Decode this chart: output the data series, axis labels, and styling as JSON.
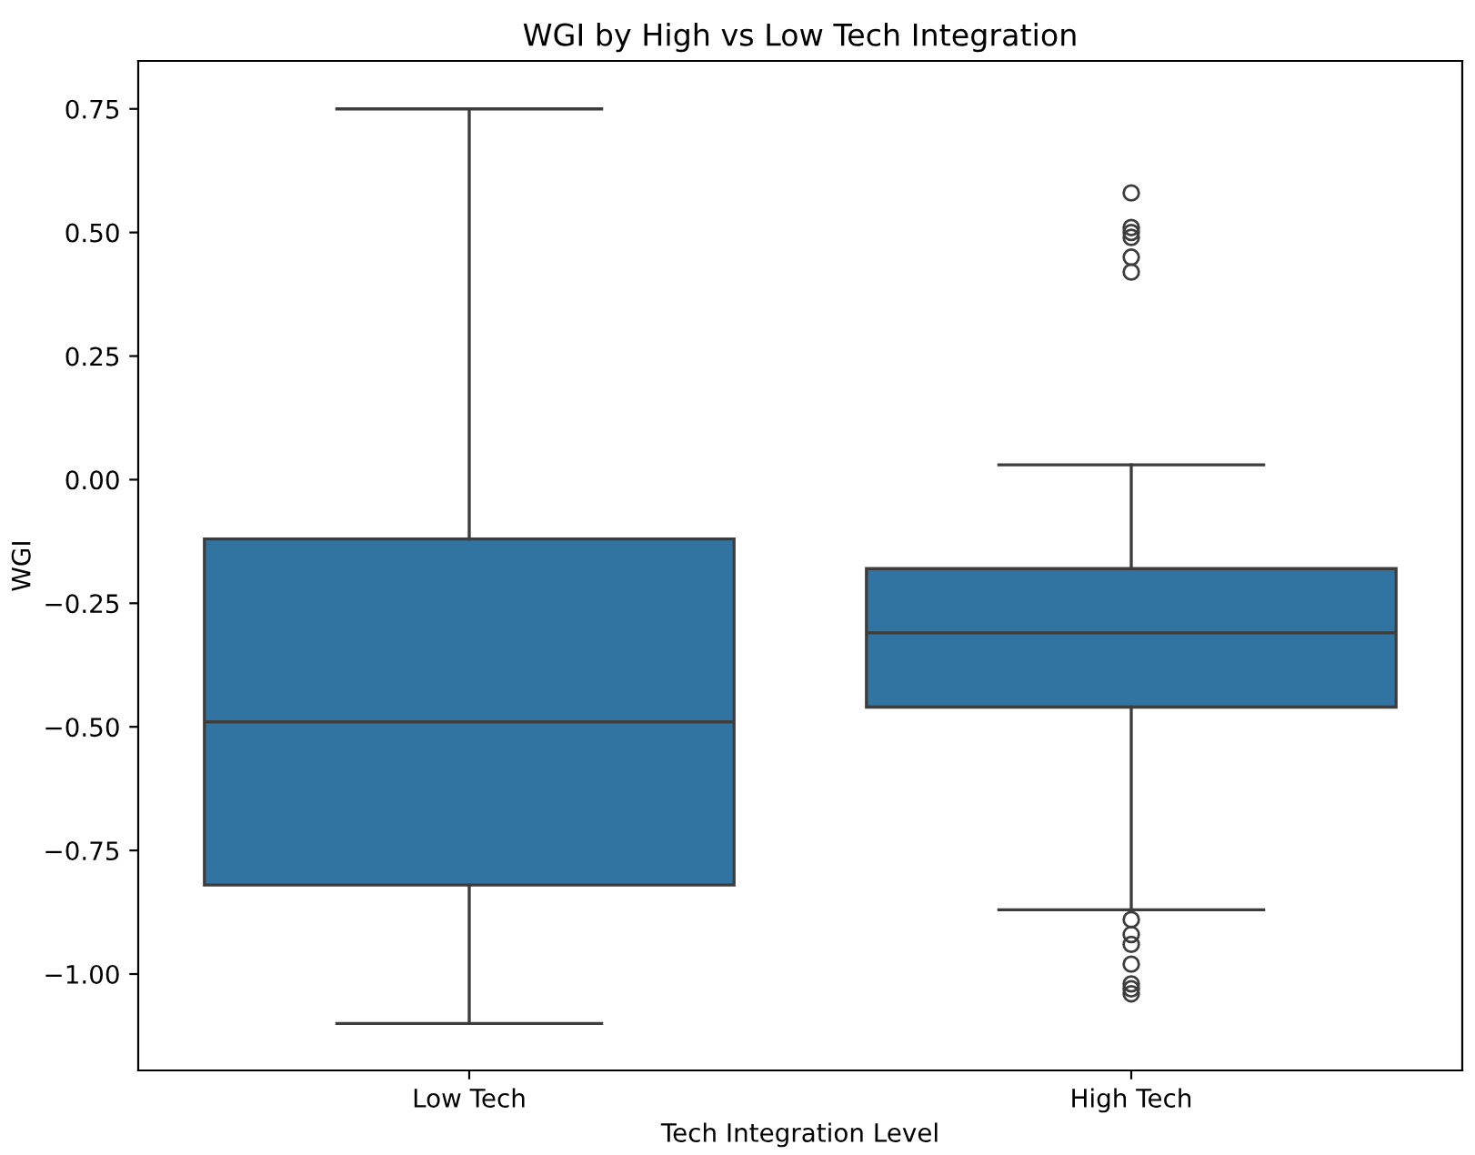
{
  "chart_data": {
    "type": "box",
    "title": "WGI by High vs Low Tech Integration",
    "xlabel": "Tech Integration Level",
    "ylabel": "WGI",
    "categories": [
      "Low Tech",
      "High Tech"
    ],
    "color": "#3274a1",
    "boxes": [
      {
        "low": -1.1,
        "q1": -0.82,
        "median": -0.49,
        "q3": -0.12,
        "high": 0.75
      },
      {
        "low": -0.87,
        "q1": -0.46,
        "median": -0.31,
        "q3": -0.18,
        "high": 0.03,
        "outliers": [
          0.58,
          0.51,
          0.5,
          0.49,
          0.45,
          0.42,
          -0.89,
          -0.92,
          -0.94,
          -0.98,
          -1.02,
          -1.03,
          -1.04
        ]
      }
    ],
    "ylim": [
      -1.195,
      0.847
    ],
    "yticks": [
      {
        "value": 0.75,
        "label": "0.75"
      },
      {
        "value": 0.5,
        "label": "0.50"
      },
      {
        "value": 0.25,
        "label": "0.25"
      },
      {
        "value": 0,
        "label": "0.00"
      },
      {
        "value": -0.25,
        "label": "−0.25"
      },
      {
        "value": -0.5,
        "label": "−0.50"
      },
      {
        "value": -0.75,
        "label": "−0.75"
      },
      {
        "value": -1,
        "label": "−1.00"
      }
    ],
    "grid": false
  }
}
